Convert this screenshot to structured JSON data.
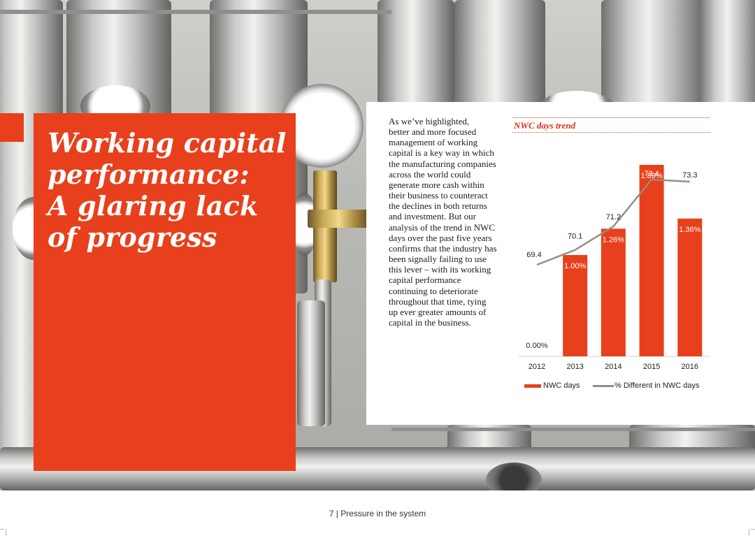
{
  "heading": {
    "lines": [
      "Working capital",
      "performance:",
      "A glaring lack",
      "of progress"
    ]
  },
  "body_lines": [
    "As we’ve highlighted,",
    "better and more focused",
    "management of working",
    "capital is a key way in which",
    "the manufacturing companies",
    "across the world could",
    "generate more cash within",
    "their business to counteract",
    "the declines in both returns",
    "and investment. But our",
    "analysis of the trend in NWC",
    "days over the past five years",
    "confirms that the industry has",
    "been signally failing to use",
    "this lever – with its working",
    "capital performance",
    "continuing to deteriorate",
    "throughout that time, tying",
    "up ever greater amounts of",
    "capital in the business."
  ],
  "footer": "7 | Pressure in the system",
  "chart_data": {
    "type": "bar",
    "title": "NWC days trend",
    "categories": [
      "2012",
      "2013",
      "2014",
      "2015",
      "2016"
    ],
    "series": [
      {
        "name": "NWC days",
        "kind": "line",
        "values": [
          69.4,
          70.1,
          71.2,
          73.4,
          73.3
        ],
        "labels": [
          "69.4",
          "70.1",
          "71.2",
          "73.4",
          "73.3"
        ]
      },
      {
        "name": "% Different in NWC days",
        "kind": "bar",
        "values": [
          0.0,
          1.0,
          1.26,
          1.89,
          1.36
        ],
        "labels": [
          "0.00%",
          "1.00%",
          "1.26%",
          "1.89%",
          "1.36%"
        ]
      }
    ],
    "legend": [
      "NWC days",
      "% Different in NWC days"
    ],
    "legend_position": "bottom",
    "grid": false,
    "colors": {
      "bar": "#e8401c",
      "line": "#948f80"
    }
  }
}
